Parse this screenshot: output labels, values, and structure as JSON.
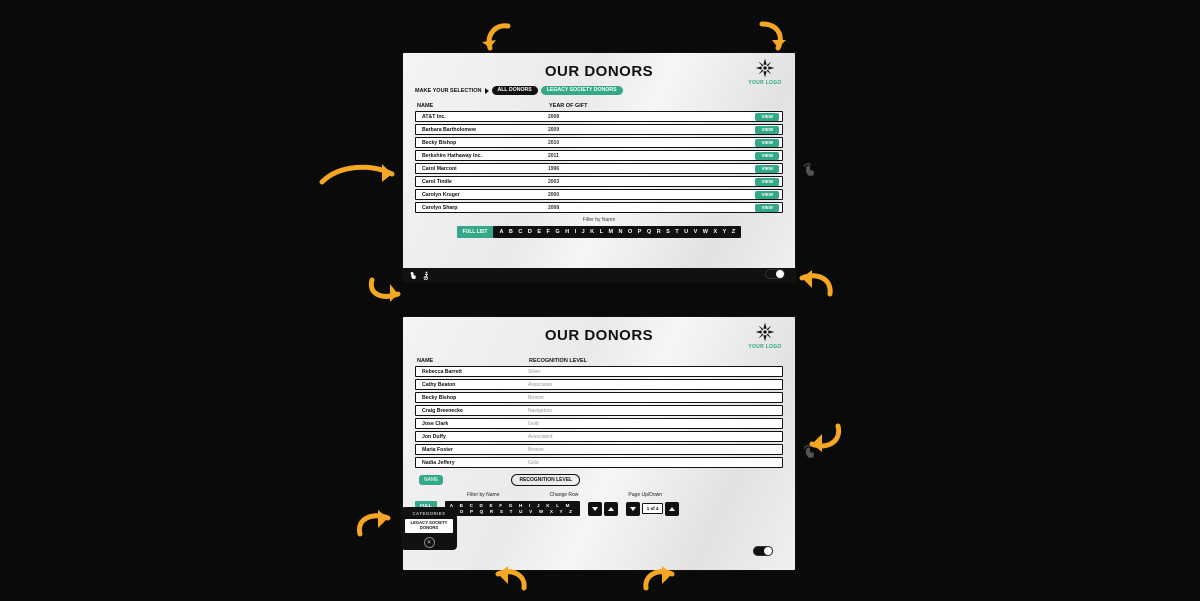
{
  "colors": {
    "teal": "#33a98a",
    "dark": "#111111",
    "bg": "#0a0a0a"
  },
  "logo": {
    "text": "YOUR LOGO"
  },
  "title": "OUR DONORS",
  "selection": {
    "label": "MAKE YOUR SELECTION",
    "all_donors": "ALL DONORS",
    "legacy": "LEGACY SOCIETY DONORS"
  },
  "top": {
    "columns": {
      "name": "NAME",
      "year": "YEAR OF GIFT"
    },
    "view": "VIEW",
    "rows": [
      {
        "name": "AT&T Inc.",
        "year": "2008"
      },
      {
        "name": "Barbara Bartholomew",
        "year": "2009"
      },
      {
        "name": "Becky Bishop",
        "year": "2010"
      },
      {
        "name": "Berkshire Hathaway Inc.",
        "year": "2011"
      },
      {
        "name": "Carol Marconi",
        "year": "1996"
      },
      {
        "name": "Carol Tindle",
        "year": "2003"
      },
      {
        "name": "Carolyn Kruger",
        "year": "2000"
      },
      {
        "name": "Carolyn Sharp",
        "year": "2008"
      }
    ],
    "filter_label": "Filter by Name",
    "full_list": "FULL LIST"
  },
  "bot": {
    "columns": {
      "name": "NAME",
      "rec": "RECOGNITION LEVEL"
    },
    "rows": [
      {
        "name": "Rebecca Barrett",
        "rec": "Silver"
      },
      {
        "name": "Cathy Beaton",
        "rec": "Associates"
      },
      {
        "name": "Becky Bishop",
        "rec": "Bronze"
      },
      {
        "name": "Craig Breenecke",
        "rec": "Navigators"
      },
      {
        "name": "Jose Clark",
        "rec": "Gold"
      },
      {
        "name": "Jon Duffy",
        "rec": "Associated"
      },
      {
        "name": "Maria Foster",
        "rec": "Bronze"
      },
      {
        "name": "Nadia Jeffery",
        "rec": "Gold"
      }
    ],
    "name_btn": "NAME",
    "rec_btn": "RECOGNITION LEVEL",
    "labels": {
      "filter": "Filter by Name",
      "change": "Change Row",
      "page": "Page Up/Down"
    },
    "full_list": "FULL\nLIST",
    "alpha2": "A B C D E F G H I J K L M\nN O P Q R S T U V W X Y Z",
    "page_ind": "1 of 4",
    "cats": {
      "title": "CATEGORIES",
      "chip": "LEGACY SOCIETY\nDONORS"
    }
  },
  "alphabet": [
    "A",
    "B",
    "C",
    "D",
    "E",
    "F",
    "G",
    "H",
    "I",
    "J",
    "K",
    "L",
    "M",
    "N",
    "O",
    "P",
    "Q",
    "R",
    "S",
    "T",
    "U",
    "V",
    "W",
    "X",
    "Y",
    "Z"
  ]
}
